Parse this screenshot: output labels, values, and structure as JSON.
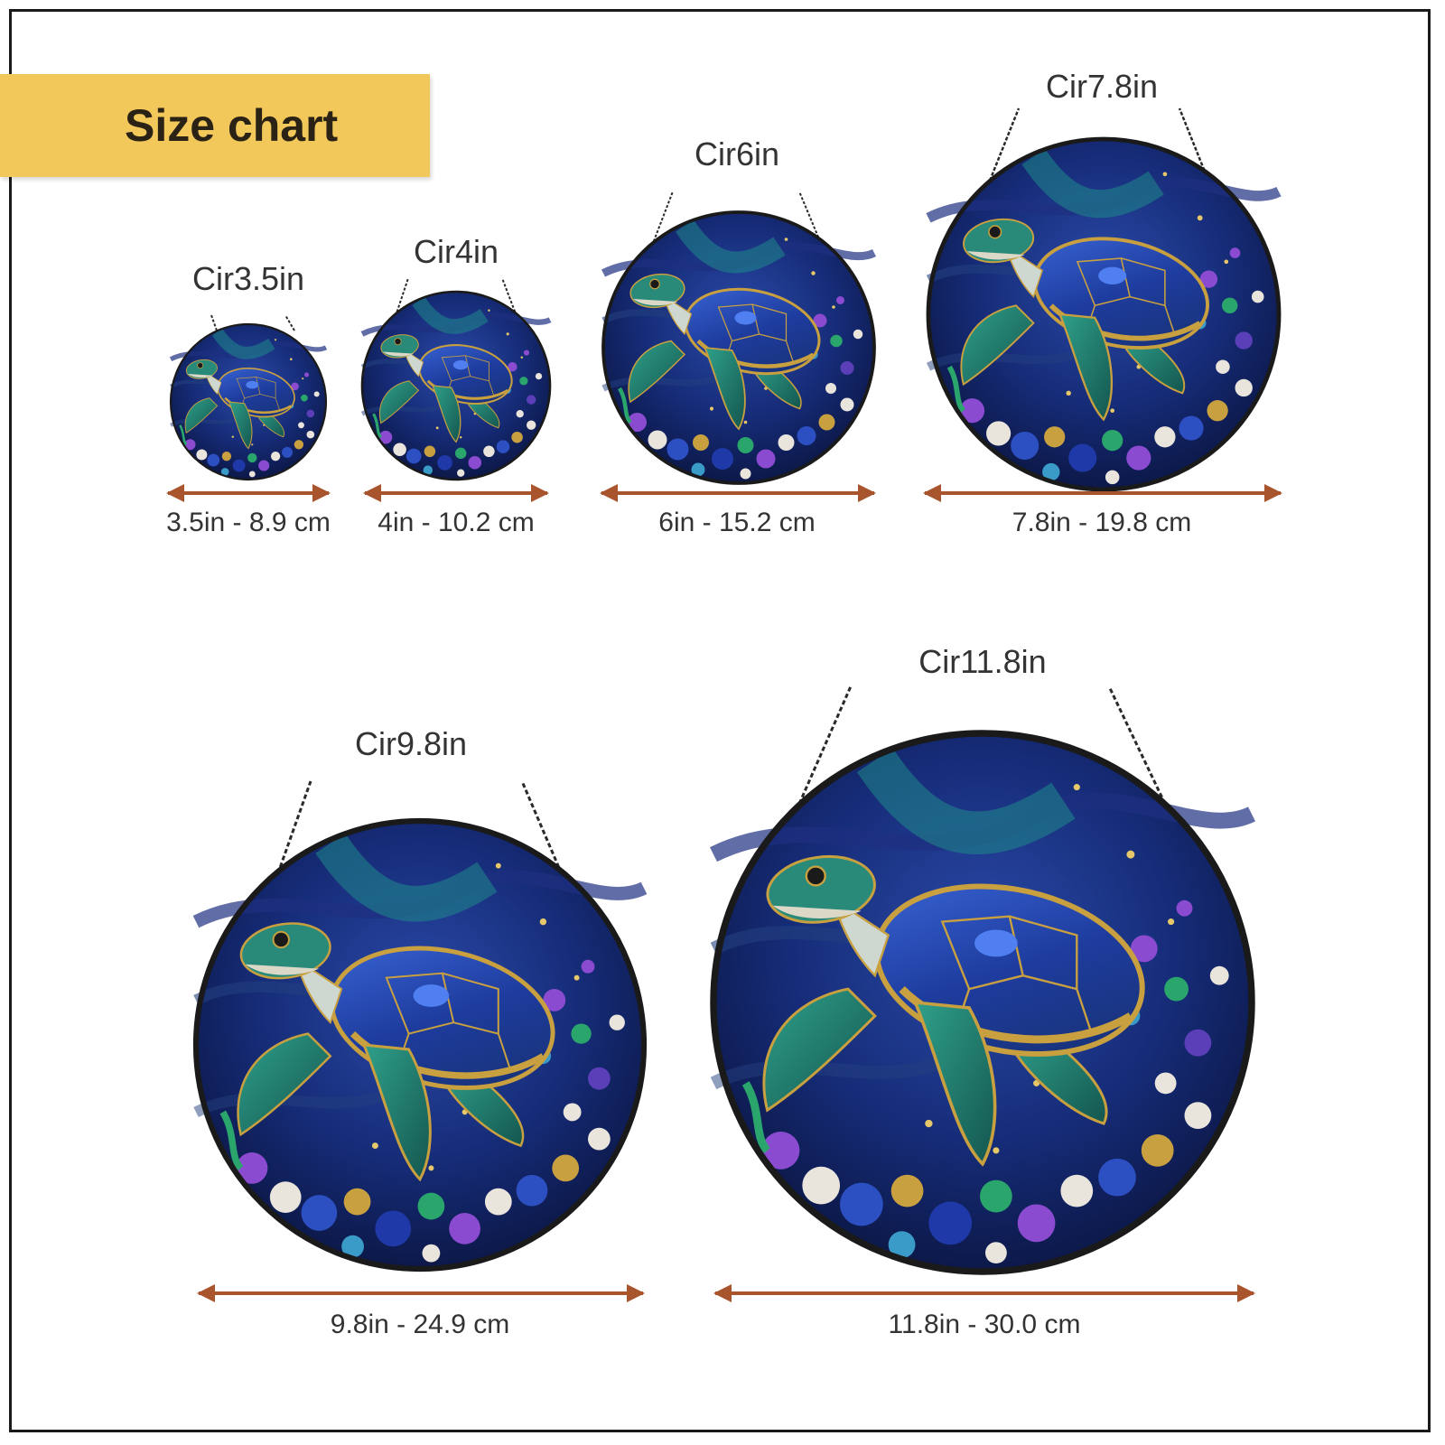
{
  "header": {
    "title": "Size chart"
  },
  "colors": {
    "badge": "#f2c85a",
    "arrow": "#a8552e",
    "chain": "#2a2a2a",
    "rim": "#1a1a1a",
    "glass_deep": "#0e1c5a",
    "glass_mid": "#1f3a8f",
    "teal": "#1f7f7a",
    "shell_blue": "#2c4fc2",
    "gem_purple": "#8a4bd0",
    "gem_green": "#2aa56b",
    "pearl": "#e9e4dc",
    "gold": "#c9a040"
  },
  "sizes": [
    {
      "title": "Cir3.5in",
      "dimension": "3.5in - 8.9 cm"
    },
    {
      "title": "Cir4in",
      "dimension": "4in - 10.2 cm"
    },
    {
      "title": "Cir6in",
      "dimension": "6in - 15.2 cm"
    },
    {
      "title": "Cir7.8in",
      "dimension": "7.8in - 19.8 cm"
    },
    {
      "title": "Cir9.8in",
      "dimension": "9.8in - 24.9 cm"
    },
    {
      "title": "Cir11.8in",
      "dimension": "11.8in - 30.0 cm"
    }
  ]
}
